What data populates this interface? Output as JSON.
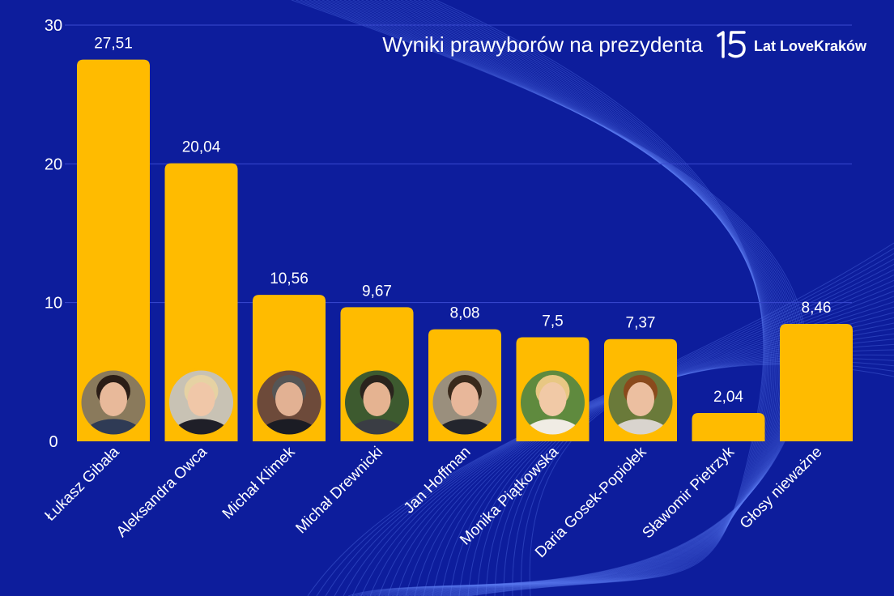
{
  "chart_data": {
    "type": "bar",
    "title": "Wyniki prawyborów na prezydenta",
    "categories": [
      "Łukasz Gibała",
      "Aleksandra Owca",
      "Michał Klimek",
      "Michał Drewnicki",
      "Jan Hoffman",
      "Monika Piątkowska",
      "Daria Gosek-Popiołek",
      "Sławomir Pietrzyk",
      "Głosy nieważne"
    ],
    "values": [
      27.51,
      20.04,
      10.56,
      9.67,
      8.08,
      7.5,
      7.37,
      2.04,
      8.46
    ],
    "value_labels": [
      "27,51",
      "20,04",
      "10,56",
      "9,67",
      "8,08",
      "7,5",
      "7,37",
      "2,04",
      "8,46"
    ],
    "ylim": [
      0,
      30
    ],
    "yticks": [
      0,
      10,
      20,
      30
    ],
    "grid": true,
    "xlabel": "",
    "ylabel": ""
  },
  "brand": {
    "number": "15",
    "text": "Lat LoveKraków"
  },
  "colors": {
    "background": "#0d1d9c",
    "bar": "#ffbb00",
    "text": "#ffffff",
    "avatar_border": "#ffbb00"
  },
  "avatars": [
    {
      "index": 0,
      "skin": "#e8b99a",
      "hair": "#2b1d16",
      "shirt": "#2f3b55",
      "bg": "#8a7a5c"
    },
    {
      "index": 1,
      "skin": "#f0c7a8",
      "hair": "#e6d2a3",
      "shirt": "#1f1f28",
      "bg": "#c8c2b4"
    },
    {
      "index": 2,
      "skin": "#e2b193",
      "hair": "#555555",
      "shirt": "#1b1c24",
      "bg": "#6d4a3a"
    },
    {
      "index": 3,
      "skin": "#e5b391",
      "hair": "#2a241d",
      "shirt": "#3a3d44",
      "bg": "#3d5a2f"
    },
    {
      "index": 4,
      "skin": "#e8b79a",
      "hair": "#3a2a1c",
      "shirt": "#23252d",
      "bg": "#9a8f7d"
    },
    {
      "index": 5,
      "skin": "#f1c9a6",
      "hair": "#e8c783",
      "shirt": "#f0ece4",
      "bg": "#5f8a3e"
    },
    {
      "index": 6,
      "skin": "#ecbfa0",
      "hair": "#8a4a1c",
      "shirt": "#d9d4ce",
      "bg": "#6a7a3a"
    }
  ]
}
